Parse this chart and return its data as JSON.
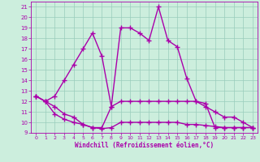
{
  "line1_x": [
    0,
    1,
    2,
    3,
    4,
    5,
    6,
    7,
    8,
    9,
    10,
    11,
    12,
    13,
    14,
    15,
    16,
    17,
    18,
    19,
    20,
    21,
    22,
    23
  ],
  "line1_y": [
    12.5,
    12.0,
    12.5,
    14.0,
    15.5,
    17.0,
    18.5,
    16.3,
    11.5,
    19.0,
    19.0,
    18.5,
    17.8,
    21.0,
    17.8,
    17.2,
    14.2,
    12.0,
    11.8,
    9.5,
    9.5,
    9.5,
    9.5,
    9.5
  ],
  "line2_x": [
    0,
    1,
    2,
    3,
    4,
    5,
    6,
    7,
    8,
    9,
    10,
    11,
    12,
    13,
    14,
    15,
    16,
    17,
    18,
    19,
    20,
    21,
    22,
    23
  ],
  "line2_y": [
    12.5,
    12.0,
    11.5,
    10.8,
    10.5,
    9.8,
    9.5,
    9.5,
    11.5,
    12.0,
    12.0,
    12.0,
    12.0,
    12.0,
    12.0,
    12.0,
    12.0,
    12.0,
    11.5,
    11.0,
    10.5,
    10.5,
    10.0,
    9.5
  ],
  "line3_x": [
    0,
    1,
    2,
    3,
    4,
    5,
    6,
    7,
    8,
    9,
    10,
    11,
    12,
    13,
    14,
    15,
    16,
    17,
    18,
    19,
    20,
    21,
    22,
    23
  ],
  "line3_y": [
    12.5,
    12.0,
    10.8,
    10.3,
    10.0,
    9.8,
    9.5,
    9.4,
    9.5,
    10.0,
    10.0,
    10.0,
    10.0,
    10.0,
    10.0,
    10.0,
    9.8,
    9.8,
    9.7,
    9.6,
    9.5,
    9.5,
    9.5,
    9.5
  ],
  "color": "#aa00aa",
  "bg_color": "#cceedd",
  "grid_color": "#99ccbb",
  "xlabel": "Windchill (Refroidissement éolien,°C)",
  "xlim": [
    -0.5,
    23.5
  ],
  "ylim": [
    9,
    21.5
  ],
  "yticks": [
    9,
    10,
    11,
    12,
    13,
    14,
    15,
    16,
    17,
    18,
    19,
    20,
    21
  ],
  "xticks": [
    0,
    1,
    2,
    3,
    4,
    5,
    6,
    7,
    8,
    9,
    10,
    11,
    12,
    13,
    14,
    15,
    16,
    17,
    18,
    19,
    20,
    21,
    22,
    23
  ],
  "marker": "+",
  "markersize": 4,
  "linewidth": 1.0
}
